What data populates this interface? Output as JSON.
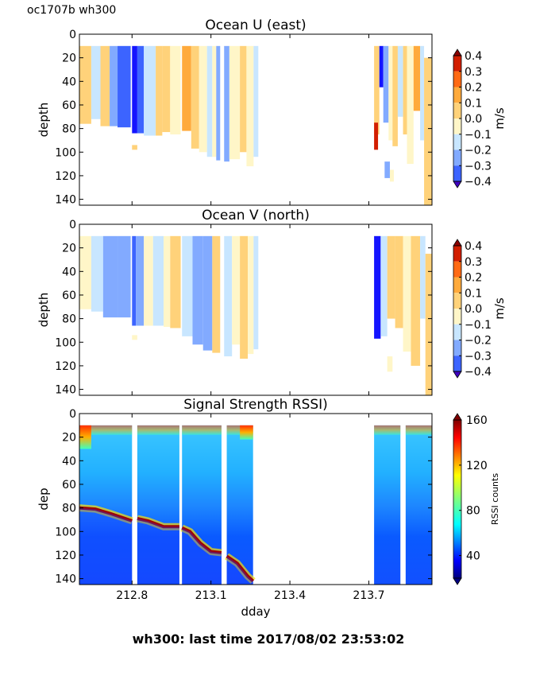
{
  "top_left_label": "oc1707b wh300",
  "footer": "wh300: last time 2017/08/02 23:53:02",
  "chart_data": [
    {
      "type": "heatmap",
      "title": "Ocean U (east)",
      "ylabel": "depth",
      "xlabel": "",
      "xlim": [
        212.6,
        213.94
      ],
      "ylim": [
        145,
        0
      ],
      "y_ticks": [
        0,
        20,
        40,
        60,
        80,
        100,
        120,
        140
      ],
      "x_ticks": [
        212.8,
        213.1,
        213.4,
        213.7
      ],
      "x_tick_labels_shown": false,
      "colorbar": {
        "label": "m/s",
        "ticks": [
          "0.4",
          "0.3",
          "0.2",
          "0.1",
          "0.0",
          "−0.1",
          "−0.2",
          "−0.3",
          "−0.4"
        ],
        "tick_values": [
          0.4,
          0.3,
          0.2,
          0.1,
          0.0,
          -0.1,
          -0.2,
          -0.3,
          -0.4
        ],
        "range": [
          -0.4,
          0.4
        ],
        "extend": "both",
        "colormap": "jet-discrete"
      },
      "blocks": [
        {
          "x0": 212.6,
          "x1": 212.645,
          "d0": 10,
          "d1": 76,
          "v": 0.1
        },
        {
          "x0": 212.645,
          "x1": 212.68,
          "d0": 10,
          "d1": 72,
          "v": -0.05
        },
        {
          "x0": 212.68,
          "x1": 212.715,
          "d0": 10,
          "d1": 78,
          "v": 0.12
        },
        {
          "x0": 212.715,
          "x1": 212.745,
          "d0": 10,
          "d1": 78,
          "v": -0.15
        },
        {
          "x0": 212.745,
          "x1": 212.795,
          "d0": 10,
          "d1": 79,
          "v": -0.28
        },
        {
          "x0": 212.8,
          "x1": 212.82,
          "d0": 10,
          "d1": 84,
          "v": -0.38
        },
        {
          "x0": 212.82,
          "x1": 212.845,
          "d0": 10,
          "d1": 84,
          "v": -0.22
        },
        {
          "x0": 212.845,
          "x1": 212.89,
          "d0": 10,
          "d1": 86,
          "v": -0.05
        },
        {
          "x0": 212.89,
          "x1": 212.915,
          "d0": 10,
          "d1": 86,
          "v": 0.12
        },
        {
          "x0": 212.8,
          "x1": 212.82,
          "d0": 94,
          "d1": 98,
          "v": 0.12
        },
        {
          "x0": 212.915,
          "x1": 212.945,
          "d0": 10,
          "d1": 83,
          "v": 0.12
        },
        {
          "x0": 212.945,
          "x1": 212.985,
          "d0": 10,
          "d1": 85,
          "v": 0.05
        },
        {
          "x0": 212.99,
          "x1": 213.025,
          "d0": 10,
          "d1": 82,
          "v": 0.28
        },
        {
          "x0": 213.025,
          "x1": 213.055,
          "d0": 10,
          "d1": 97,
          "v": 0.12
        },
        {
          "x0": 213.055,
          "x1": 213.085,
          "d0": 10,
          "d1": 100,
          "v": 0.05
        },
        {
          "x0": 213.085,
          "x1": 213.105,
          "d0": 10,
          "d1": 104,
          "v": -0.05
        },
        {
          "x0": 213.105,
          "x1": 213.12,
          "d0": 10,
          "d1": 104,
          "v": 0.05
        },
        {
          "x0": 213.12,
          "x1": 213.135,
          "d0": 10,
          "d1": 107,
          "v": -0.12
        },
        {
          "x0": 213.15,
          "x1": 213.17,
          "d0": 10,
          "d1": 108,
          "v": -0.12
        },
        {
          "x0": 213.17,
          "x1": 213.21,
          "d0": 10,
          "d1": 106,
          "v": 0.08
        },
        {
          "x0": 213.21,
          "x1": 213.235,
          "d0": 10,
          "d1": 100,
          "v": 0.12
        },
        {
          "x0": 213.235,
          "x1": 213.262,
          "d0": 10,
          "d1": 112,
          "v": 0.05
        },
        {
          "x0": 213.262,
          "x1": 213.28,
          "d0": 10,
          "d1": 104,
          "v": -0.05
        },
        {
          "x0": 213.72,
          "x1": 213.74,
          "d0": 10,
          "d1": 85,
          "v": 0.12
        },
        {
          "x0": 213.74,
          "x1": 213.755,
          "d0": 10,
          "d1": 45,
          "v": -0.35
        },
        {
          "x0": 213.755,
          "x1": 213.775,
          "d0": 10,
          "d1": 75,
          "v": -0.15
        },
        {
          "x0": 213.775,
          "x1": 213.79,
          "d0": 10,
          "d1": 90,
          "v": 0.05
        },
        {
          "x0": 213.79,
          "x1": 213.81,
          "d0": 10,
          "d1": 95,
          "v": 0.12
        },
        {
          "x0": 213.81,
          "x1": 213.83,
          "d0": 10,
          "d1": 70,
          "v": -0.05
        },
        {
          "x0": 213.83,
          "x1": 213.845,
          "d0": 10,
          "d1": 85,
          "v": 0.1
        },
        {
          "x0": 213.845,
          "x1": 213.87,
          "d0": 10,
          "d1": 110,
          "v": 0.05
        },
        {
          "x0": 213.87,
          "x1": 213.895,
          "d0": 10,
          "d1": 65,
          "v": 0.28
        },
        {
          "x0": 213.895,
          "x1": 213.91,
          "d0": 10,
          "d1": 90,
          "v": -0.05
        },
        {
          "x0": 213.91,
          "x1": 213.94,
          "d0": 20,
          "d1": 145,
          "v": 0.12
        },
        {
          "x0": 213.72,
          "x1": 213.735,
          "d0": 75,
          "d1": 98,
          "v": 0.38
        },
        {
          "x0": 213.76,
          "x1": 213.78,
          "d0": 108,
          "d1": 122,
          "v": -0.12
        },
        {
          "x0": 213.78,
          "x1": 213.795,
          "d0": 115,
          "d1": 125,
          "v": 0.05
        }
      ]
    },
    {
      "type": "heatmap",
      "title": "Ocean V (north)",
      "ylabel": "depth",
      "xlabel": "",
      "xlim": [
        212.6,
        213.94
      ],
      "ylim": [
        145,
        0
      ],
      "y_ticks": [
        0,
        20,
        40,
        60,
        80,
        100,
        120,
        140
      ],
      "x_ticks": [
        212.8,
        213.1,
        213.4,
        213.7
      ],
      "x_tick_labels_shown": false,
      "colorbar": {
        "label": "m/s",
        "ticks": [
          "0.4",
          "0.3",
          "0.2",
          "0.1",
          "0.0",
          "−0.1",
          "−0.2",
          "−0.3",
          "−0.4"
        ],
        "tick_values": [
          0.4,
          0.3,
          0.2,
          0.1,
          0.0,
          -0.1,
          -0.2,
          -0.3,
          -0.4
        ],
        "range": [
          -0.4,
          0.4
        ],
        "extend": "both",
        "colormap": "jet-discrete"
      },
      "blocks": [
        {
          "x0": 212.6,
          "x1": 212.645,
          "d0": 10,
          "d1": 72,
          "v": 0.05
        },
        {
          "x0": 212.645,
          "x1": 212.69,
          "d0": 10,
          "d1": 74,
          "v": -0.05
        },
        {
          "x0": 212.69,
          "x1": 212.745,
          "d0": 10,
          "d1": 79,
          "v": -0.12
        },
        {
          "x0": 212.745,
          "x1": 212.795,
          "d0": 10,
          "d1": 79,
          "v": -0.15
        },
        {
          "x0": 212.8,
          "x1": 212.815,
          "d0": 10,
          "d1": 86,
          "v": -0.28
        },
        {
          "x0": 212.815,
          "x1": 212.845,
          "d0": 10,
          "d1": 86,
          "v": -0.12
        },
        {
          "x0": 212.845,
          "x1": 212.88,
          "d0": 10,
          "d1": 86,
          "v": 0.05
        },
        {
          "x0": 212.88,
          "x1": 212.92,
          "d0": 10,
          "d1": 86,
          "v": -0.05
        },
        {
          "x0": 212.92,
          "x1": 212.945,
          "d0": 10,
          "d1": 87,
          "v": 0.08
        },
        {
          "x0": 212.945,
          "x1": 212.985,
          "d0": 10,
          "d1": 88,
          "v": 0.12
        },
        {
          "x0": 212.8,
          "x1": 212.82,
          "d0": 94,
          "d1": 98,
          "v": 0.05
        },
        {
          "x0": 212.99,
          "x1": 213.03,
          "d0": 10,
          "d1": 95,
          "v": -0.05
        },
        {
          "x0": 213.03,
          "x1": 213.07,
          "d0": 10,
          "d1": 102,
          "v": -0.12
        },
        {
          "x0": 213.07,
          "x1": 213.105,
          "d0": 10,
          "d1": 107,
          "v": -0.15
        },
        {
          "x0": 213.105,
          "x1": 213.135,
          "d0": 10,
          "d1": 109,
          "v": 0.12
        },
        {
          "x0": 213.15,
          "x1": 213.18,
          "d0": 10,
          "d1": 112,
          "v": -0.05
        },
        {
          "x0": 213.18,
          "x1": 213.21,
          "d0": 10,
          "d1": 102,
          "v": 0.05
        },
        {
          "x0": 213.21,
          "x1": 213.24,
          "d0": 10,
          "d1": 114,
          "v": 0.15
        },
        {
          "x0": 213.24,
          "x1": 213.262,
          "d0": 10,
          "d1": 110,
          "v": 0.05
        },
        {
          "x0": 213.262,
          "x1": 213.28,
          "d0": 10,
          "d1": 106,
          "v": -0.05
        },
        {
          "x0": 213.72,
          "x1": 213.745,
          "d0": 10,
          "d1": 97,
          "v": -0.38
        },
        {
          "x0": 213.745,
          "x1": 213.77,
          "d0": 10,
          "d1": 95,
          "v": -0.05
        },
        {
          "x0": 213.77,
          "x1": 213.8,
          "d0": 10,
          "d1": 80,
          "v": 0.15
        },
        {
          "x0": 213.8,
          "x1": 213.83,
          "d0": 10,
          "d1": 88,
          "v": 0.12
        },
        {
          "x0": 213.83,
          "x1": 213.86,
          "d0": 10,
          "d1": 108,
          "v": 0.05
        },
        {
          "x0": 213.86,
          "x1": 213.895,
          "d0": 10,
          "d1": 120,
          "v": 0.12
        },
        {
          "x0": 213.895,
          "x1": 213.915,
          "d0": 10,
          "d1": 80,
          "v": -0.05
        },
        {
          "x0": 213.915,
          "x1": 213.94,
          "d0": 25,
          "d1": 145,
          "v": 0.12
        },
        {
          "x0": 213.77,
          "x1": 213.79,
          "d0": 112,
          "d1": 125,
          "v": 0.05
        }
      ]
    },
    {
      "type": "heatmap",
      "title": "Signal Strength RSSI)",
      "ylabel": "dep",
      "xlabel": "dday",
      "xlim": [
        212.6,
        213.94
      ],
      "ylim": [
        145,
        0
      ],
      "y_ticks": [
        0,
        20,
        40,
        60,
        80,
        100,
        120,
        140
      ],
      "x_ticks": [
        212.8,
        213.1,
        213.4,
        213.7
      ],
      "x_tick_labels": [
        "212.8",
        "213.1",
        "213.4",
        "213.7"
      ],
      "colorbar": {
        "label": "RSSI counts",
        "ticks": [
          "160",
          "120",
          "80",
          "40"
        ],
        "tick_values": [
          160,
          120,
          80,
          40
        ],
        "range": [
          20,
          160
        ],
        "extend": "both",
        "colormap": "jet"
      },
      "segments": [
        {
          "x0": 212.6,
          "x1": 212.8,
          "bottom_layer_rssi": 60
        },
        {
          "x0": 212.82,
          "x1": 212.98,
          "bottom_layer_rssi": 60
        },
        {
          "x0": 212.99,
          "x1": 213.14,
          "bottom_layer_rssi": 60
        },
        {
          "x0": 213.16,
          "x1": 213.26,
          "bottom_layer_rssi": 60
        },
        {
          "x0": 213.72,
          "x1": 213.82,
          "bottom_layer_rssi": 40
        },
        {
          "x0": 213.84,
          "x1": 213.94,
          "bottom_layer_rssi": 45
        }
      ],
      "bottom_echo_line": [
        {
          "x": 212.6,
          "d": 80
        },
        {
          "x": 212.66,
          "d": 81
        },
        {
          "x": 212.72,
          "d": 85
        },
        {
          "x": 212.8,
          "d": 91
        },
        {
          "x": 212.82,
          "d": 89
        },
        {
          "x": 212.86,
          "d": 91
        },
        {
          "x": 212.92,
          "d": 96
        },
        {
          "x": 212.98,
          "d": 96
        },
        {
          "x": 212.99,
          "d": 97
        },
        {
          "x": 213.02,
          "d": 100
        },
        {
          "x": 213.06,
          "d": 110
        },
        {
          "x": 213.1,
          "d": 117
        },
        {
          "x": 213.14,
          "d": 118
        },
        {
          "x": 213.16,
          "d": 121
        },
        {
          "x": 213.2,
          "d": 127
        },
        {
          "x": 213.24,
          "d": 138
        },
        {
          "x": 213.26,
          "d": 142
        }
      ]
    }
  ]
}
